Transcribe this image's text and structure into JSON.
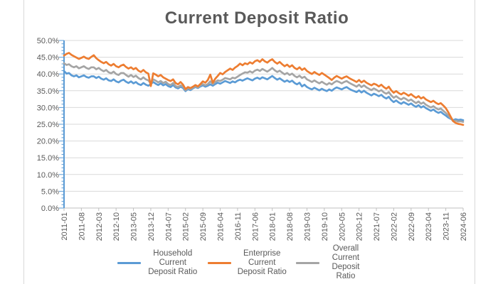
{
  "chart_data": {
    "type": "line",
    "title": "Current Deposit Ratio",
    "x_range": [
      "2011-01",
      "2024-06"
    ],
    "frequency": "monthly",
    "x_label_every_n_points": 7,
    "x_tick_labels": [
      "2011-01",
      "2011-08",
      "2012-03",
      "2012-10",
      "2013-05",
      "2013-12",
      "2014-07",
      "2015-02",
      "2015-09",
      "2016-04",
      "2016-11",
      "2017-06",
      "2018-01",
      "2018-08",
      "2019-03",
      "2019-10",
      "2020-05",
      "2020-12",
      "2021-07",
      "2022-02",
      "2022-09",
      "2023-04",
      "2023-11",
      "2024-06"
    ],
    "y_tick_labels": [
      "50.0%",
      "45.0%",
      "40.0%",
      "35.0%",
      "30.0%",
      "25.0%",
      "20.0%",
      "15.0%",
      "10.0%",
      "5.0%",
      "0.0%"
    ],
    "ylim_percent": [
      0,
      50
    ],
    "grid": true,
    "legend_position": "bottom",
    "unit": "percent",
    "series": [
      {
        "name": "Household Current Deposit Ratio",
        "color": "#5B9BD5",
        "values": [
          40.9,
          40.1,
          40.3,
          39.6,
          39.3,
          39.6,
          39.0,
          39.3,
          39.6,
          39.1,
          38.9,
          39.3,
          39.3,
          38.8,
          39.2,
          38.6,
          38.3,
          38.7,
          38.1,
          37.9,
          38.4,
          37.8,
          37.5,
          38.0,
          38.3,
          37.7,
          37.3,
          37.8,
          37.2,
          37.6,
          37.0,
          36.7,
          37.3,
          36.8,
          36.5,
          37.0,
          37.6,
          37.1,
          36.7,
          37.2,
          36.6,
          37.0,
          36.4,
          36.1,
          36.7,
          36.0,
          35.7,
          36.2,
          35.8,
          34.9,
          35.5,
          35.2,
          35.7,
          36.1,
          35.8,
          36.3,
          36.6,
          36.2,
          36.5,
          36.9,
          36.5,
          37.0,
          37.4,
          37.1,
          37.5,
          37.9,
          37.6,
          37.3,
          37.8,
          37.5,
          38.0,
          38.3,
          38.0,
          38.4,
          38.7,
          38.4,
          38.1,
          38.6,
          38.9,
          38.5,
          39.0,
          38.7,
          38.4,
          38.9,
          39.4,
          38.8,
          38.3,
          38.7,
          38.2,
          37.7,
          38.1,
          37.6,
          38.0,
          37.3,
          36.9,
          37.4,
          36.3,
          36.8,
          36.1,
          35.7,
          35.4,
          35.9,
          35.5,
          35.1,
          35.6,
          35.2,
          34.9,
          35.4,
          35.0,
          35.6,
          36.0,
          35.7,
          35.4,
          35.8,
          36.1,
          35.6,
          35.2,
          34.9,
          34.6,
          35.1,
          34.5,
          35.0,
          34.4,
          34.0,
          33.6,
          34.1,
          33.8,
          33.4,
          33.8,
          33.1,
          32.7,
          33.2,
          32.2,
          31.6,
          32.1,
          31.5,
          31.1,
          31.6,
          31.2,
          30.8,
          31.2,
          30.6,
          30.2,
          30.7,
          30.0,
          30.4,
          29.8,
          29.4,
          29.0,
          29.4,
          28.8,
          28.4,
          28.7,
          28.1,
          27.6,
          27.0,
          26.6,
          26.2,
          26.5,
          26.3,
          26.4,
          26.2
        ]
      },
      {
        "name": "Enterprise Current Deposit Ratio",
        "color": "#ED7D31",
        "values": [
          45.5,
          46.0,
          46.3,
          45.7,
          45.3,
          44.9,
          44.5,
          44.8,
          45.2,
          44.7,
          44.5,
          45.1,
          45.6,
          44.7,
          44.1,
          43.6,
          43.2,
          43.6,
          42.9,
          42.5,
          43.0,
          42.3,
          42.0,
          42.5,
          42.8,
          42.1,
          41.6,
          42.0,
          41.4,
          41.8,
          41.0,
          40.6,
          41.2,
          40.5,
          40.1,
          36.4,
          40.2,
          39.8,
          39.3,
          39.7,
          39.0,
          38.6,
          38.2,
          37.9,
          38.4,
          37.3,
          36.9,
          37.6,
          36.8,
          35.5,
          36.1,
          35.8,
          36.2,
          36.7,
          36.3,
          37.0,
          37.8,
          37.4,
          38.2,
          39.8,
          37.4,
          38.6,
          39.4,
          40.3,
          39.9,
          40.6,
          41.1,
          41.6,
          41.2,
          41.9,
          42.4,
          43.1,
          42.6,
          43.2,
          42.9,
          43.5,
          43.1,
          43.8,
          44.1,
          43.6,
          44.4,
          43.8,
          43.4,
          44.0,
          44.4,
          43.6,
          43.1,
          43.6,
          42.9,
          42.3,
          42.8,
          42.1,
          42.6,
          41.8,
          41.4,
          42.0,
          41.2,
          41.7,
          40.9,
          40.4,
          40.0,
          40.6,
          40.1,
          39.7,
          40.3,
          39.8,
          39.3,
          38.8,
          38.2,
          38.9,
          39.4,
          39.0,
          38.6,
          39.0,
          39.3,
          38.8,
          38.4,
          38.0,
          37.6,
          38.2,
          37.5,
          38.0,
          37.4,
          37.0,
          36.6,
          37.1,
          36.8,
          36.3,
          36.8,
          36.1,
          35.6,
          36.2,
          35.1,
          34.4,
          34.9,
          34.3,
          33.9,
          34.4,
          34.0,
          33.5,
          34.0,
          33.4,
          32.9,
          33.4,
          32.7,
          33.1,
          32.4,
          32.0,
          31.6,
          32.0,
          31.4,
          31.0,
          31.3,
          30.6,
          29.8,
          28.6,
          27.2,
          25.9,
          25.4,
          25.1,
          25.0,
          24.8
        ]
      },
      {
        "name": "Overall Current Deposit Ratio",
        "color": "#A5A5A5",
        "values": [
          43.2,
          42.7,
          42.9,
          42.3,
          42.0,
          42.3,
          41.7,
          42.0,
          42.3,
          41.8,
          41.5,
          42.0,
          42.0,
          41.4,
          41.8,
          41.2,
          40.8,
          41.2,
          40.5,
          40.2,
          40.7,
          40.0,
          39.7,
          40.3,
          40.3,
          39.7,
          39.2,
          39.7,
          39.1,
          39.5,
          38.8,
          38.4,
          39.0,
          38.4,
          38.1,
          37.2,
          38.4,
          38.0,
          37.5,
          37.9,
          37.3,
          37.7,
          37.0,
          36.7,
          37.3,
          36.4,
          36.1,
          36.6,
          36.2,
          35.2,
          35.8,
          35.5,
          35.9,
          36.3,
          36.0,
          36.6,
          37.0,
          36.6,
          37.0,
          37.8,
          37.0,
          37.6,
          38.1,
          37.9,
          38.3,
          38.8,
          38.6,
          38.4,
          38.9,
          38.7,
          39.2,
          39.7,
          40.1,
          40.5,
          40.4,
          40.8,
          40.4,
          41.0,
          41.3,
          40.9,
          41.5,
          41.1,
          40.7,
          41.2,
          41.8,
          41.1,
          40.6,
          41.0,
          40.4,
          39.9,
          40.3,
          39.7,
          40.1,
          39.4,
          39.0,
          39.5,
          38.8,
          39.2,
          38.4,
          38.0,
          37.6,
          38.1,
          37.6,
          37.2,
          37.7,
          37.2,
          36.8,
          37.3,
          36.9,
          37.5,
          37.9,
          37.6,
          37.2,
          37.6,
          37.9,
          37.4,
          37.0,
          36.6,
          36.2,
          36.8,
          36.1,
          36.6,
          36.0,
          35.6,
          35.2,
          35.7,
          35.3,
          34.8,
          35.2,
          34.5,
          34.1,
          34.6,
          33.6,
          32.9,
          33.4,
          32.8,
          32.4,
          32.9,
          32.5,
          32.0,
          32.4,
          31.8,
          31.3,
          31.8,
          31.1,
          31.5,
          30.8,
          30.4,
          30.0,
          30.4,
          29.8,
          29.4,
          29.7,
          29.0,
          28.4,
          27.6,
          26.8,
          25.9,
          26.1,
          25.8,
          25.9,
          25.7
        ]
      }
    ],
    "legend": [
      {
        "line1": "Household Current",
        "line2": "Deposit Ratio"
      },
      {
        "line1": "Enterprise Current",
        "line2": "Deposit Ratio"
      },
      {
        "line1": "Overall Current",
        "line2": "Deposit Ratio"
      }
    ],
    "colors": {
      "title_text": "#595959",
      "axis_text": "#595959",
      "gridline": "#D9D9D9",
      "x_axis": "#BFBFBF",
      "y_axis": "#5B9BD5",
      "background": "#FFFFFF",
      "cell_border": "#D9D9D9"
    }
  }
}
